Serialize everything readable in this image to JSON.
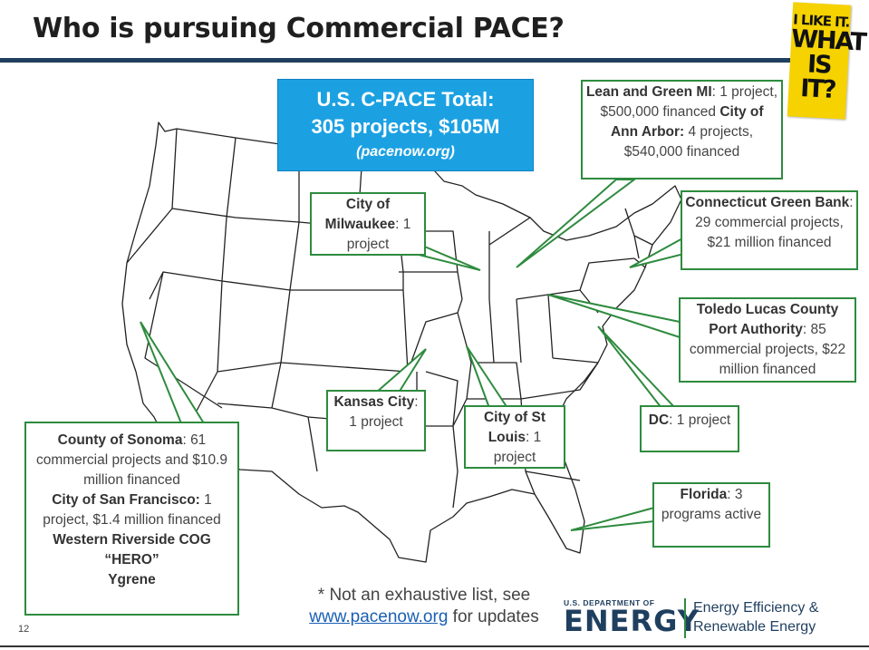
{
  "title": "Who is pursuing Commercial PACE?",
  "sticker": {
    "line1": "I LIKE IT.",
    "line2": "WHAT",
    "line3": "IS IT?"
  },
  "total": {
    "line1": "U.S. C-PACE Total:",
    "line2": "305 projects, $105M",
    "line3": "(pacenow.org)"
  },
  "boxes": {
    "michigan": {
      "b1": "Lean and Green MI",
      "t1": ": 1 project, $500,000 financed",
      "b2": "City of Ann Arbor:",
      "t2": " 4 projects, $540,000 financed"
    },
    "connecticut": {
      "b1": "Connecticut Green Bank",
      "t1": ": 29 commercial projects, $21 million financed"
    },
    "toledo": {
      "b1": "Toledo Lucas County Port Authority",
      "t1": ": 85 commercial projects, $22 million financed"
    },
    "milwaukee": {
      "b1": "City of Milwaukee",
      "t1": ": 1 project"
    },
    "kansas": {
      "b1": "Kansas City",
      "t1": ": 1 project"
    },
    "stlouis": {
      "b1": "City of St Louis",
      "t1": ": 1 project"
    },
    "dc": {
      "b1": "DC",
      "t1": ": 1 project"
    },
    "florida": {
      "b1": "Florida",
      "t1": ": 3 programs active"
    },
    "california": {
      "b1": "County of Sonoma",
      "t1": ": 61 commercial projects and $10.9 million financed",
      "b2": "City of San Francisco:",
      "t2": " 1 project, $1.4 million financed",
      "b3": "Western Riverside COG “HERO”",
      "b4": "Ygrene"
    }
  },
  "note": {
    "line1": "* Not an exhaustive list, see",
    "link": "www.pacenow.org",
    "line2_rest": " for updates"
  },
  "doe": {
    "small": "U.S. DEPARTMENT OF",
    "big": "ENERGY"
  },
  "eere": {
    "line1": "Energy Efficiency &",
    "line2": "Renewable Energy"
  },
  "page_number": "12",
  "colors": {
    "accent_green": "#2e8b3e",
    "total_blue": "#1ba1e2",
    "rule_navy": "#1f3f5f",
    "sticker_yellow": "#f5d200"
  }
}
